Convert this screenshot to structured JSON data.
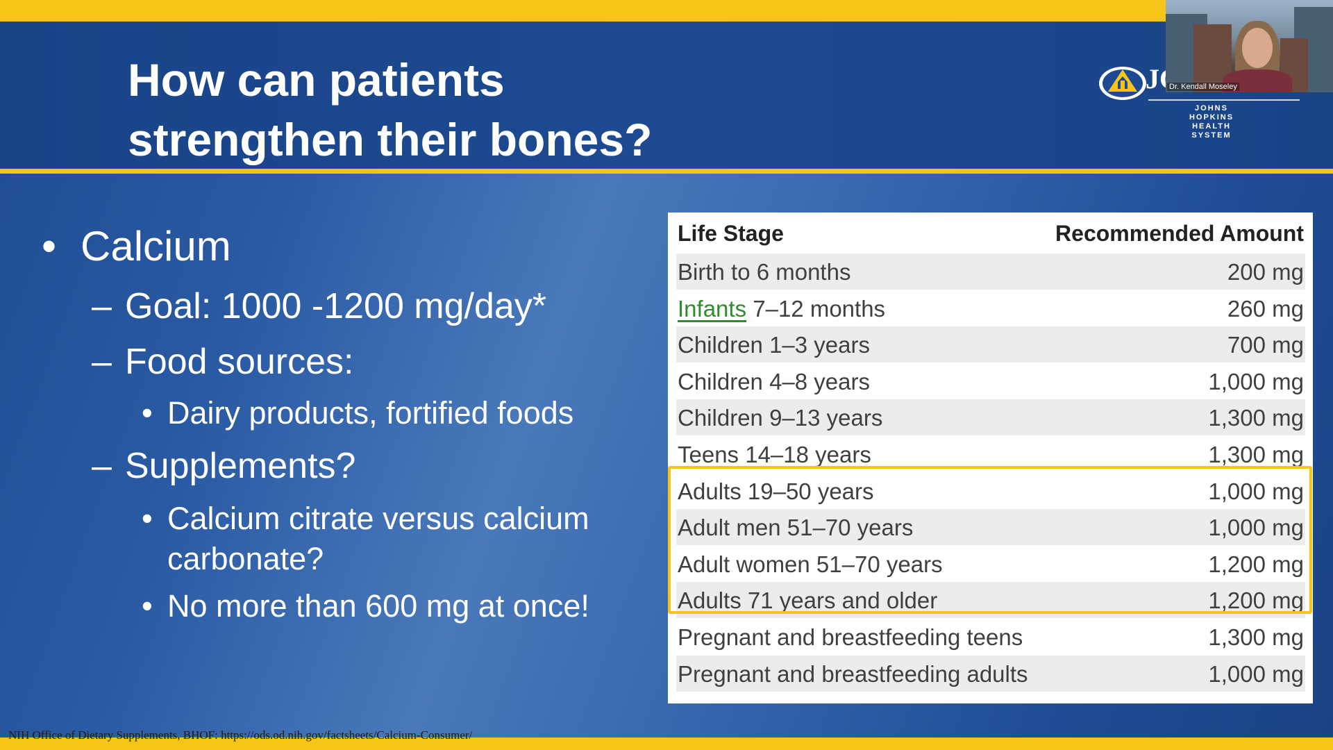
{
  "slide": {
    "title_line1": "How can patients",
    "title_line2": "strengthen their bones?",
    "colors": {
      "accent": "#f6c518",
      "background": "#2a5aa3",
      "highlight": "#f6c518",
      "link": "#2e8b2e"
    }
  },
  "logo": {
    "text": "JC",
    "subtitle": "JOHNS HOPKINS HEALTH SYSTEM",
    "icon": "shield-logo-icon"
  },
  "webcam": {
    "name": "Dr. Kendall Moseley"
  },
  "bullets": {
    "calcium": "Calcium",
    "goal": "Goal: 1000 -1200 mg/day*",
    "food_sources": "Food sources:",
    "dairy": "Dairy products, fortified foods",
    "supplements": "Supplements?",
    "citrate_line1": "Calcium citrate versus calcium",
    "citrate_line2": "carbonate?",
    "no_more": "No more than 600 mg at once!"
  },
  "table": {
    "headers": [
      "Life Stage",
      "Recommended Amount"
    ],
    "rows": [
      {
        "stage": "Birth to 6 months",
        "amount": "200 mg"
      },
      {
        "stage_link": "Infants",
        "stage_rest": " 7–12 months",
        "amount": "260 mg"
      },
      {
        "stage": "Children 1–3 years",
        "amount": "700 mg"
      },
      {
        "stage": "Children 4–8 years",
        "amount": "1,000 mg"
      },
      {
        "stage": "Children 9–13 years",
        "amount": "1,300 mg"
      },
      {
        "stage": "Teens 14–18 years",
        "amount": "1,300 mg"
      },
      {
        "stage": "Adults 19–50 years",
        "amount": "1,000 mg"
      },
      {
        "stage": "Adult men 51–70 years",
        "amount": "1,000 mg"
      },
      {
        "stage": "Adult women 51–70 years",
        "amount": "1,200 mg"
      },
      {
        "stage": "Adults 71 years and older",
        "amount": "1,200 mg"
      },
      {
        "stage": "Pregnant and breastfeeding teens",
        "amount": "1,300 mg"
      },
      {
        "stage": "Pregnant and breastfeeding adults",
        "amount": "1,000 mg"
      }
    ]
  },
  "citation": "NIH Office of Dietary Supplements, BHOF: https://ods.od.nih.gov/factsheets/Calcium-Consumer/"
}
